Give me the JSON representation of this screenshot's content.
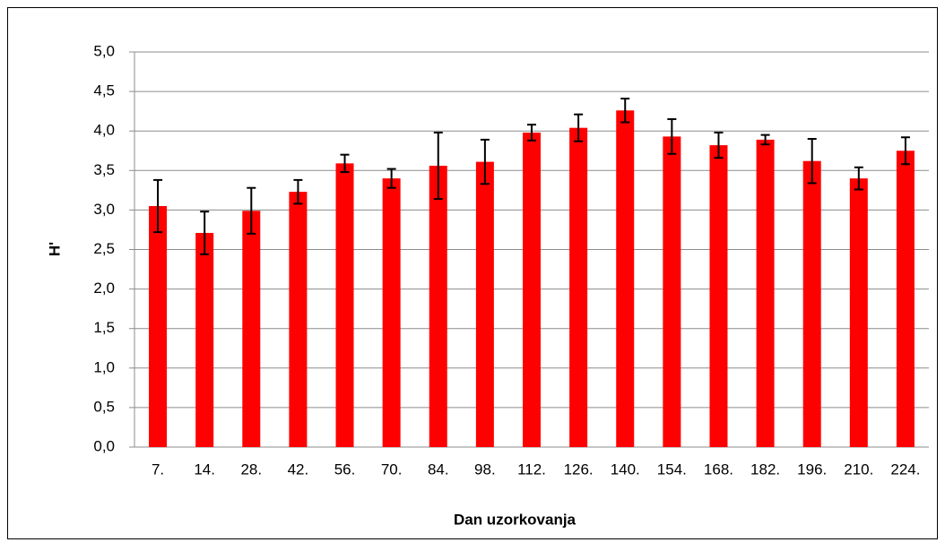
{
  "chart_data": {
    "type": "bar",
    "x_label": "Dan uzorkovanja",
    "y_label": "H'",
    "categories": [
      "7.",
      "14.",
      "28.",
      "42.",
      "56.",
      "70.",
      "84.",
      "98.",
      "112.",
      "126.",
      "140.",
      "154.",
      "168.",
      "182.",
      "196.",
      "210.",
      "224."
    ],
    "values": [
      3.05,
      2.71,
      2.99,
      3.23,
      3.59,
      3.4,
      3.56,
      3.61,
      3.98,
      4.04,
      4.26,
      3.93,
      3.82,
      3.89,
      3.62,
      3.4,
      3.75
    ],
    "errors": [
      0.33,
      0.27,
      0.29,
      0.15,
      0.11,
      0.12,
      0.42,
      0.28,
      0.1,
      0.17,
      0.15,
      0.22,
      0.16,
      0.06,
      0.28,
      0.14,
      0.17
    ],
    "color": "#ff0000",
    "error_color": "#000000",
    "ylim": [
      0,
      5
    ],
    "yticks": [
      {
        "value": 0,
        "label": "0,0"
      },
      {
        "value": 0.5,
        "label": "0,5"
      },
      {
        "value": 1,
        "label": "1,0"
      },
      {
        "value": 1.5,
        "label": "1,5"
      },
      {
        "value": 2,
        "label": "2,0"
      },
      {
        "value": 2.5,
        "label": "2,5"
      },
      {
        "value": 3,
        "label": "3,0"
      },
      {
        "value": 3.5,
        "label": "3,5"
      },
      {
        "value": 4,
        "label": "4,0"
      },
      {
        "value": 4.5,
        "label": "4,5"
      },
      {
        "value": 5,
        "label": "5,0"
      }
    ],
    "grid": true
  }
}
